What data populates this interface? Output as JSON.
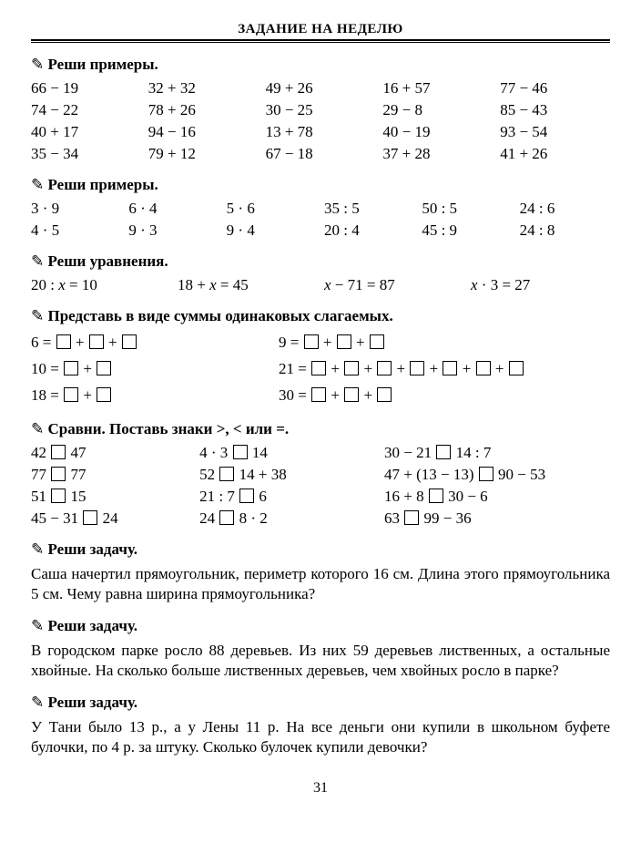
{
  "header": "ЗАДАНИЕ НА НЕДЕЛЮ",
  "task1": {
    "label": "Реши примеры.",
    "rows": [
      [
        "66 − 19",
        "32 + 32",
        "49 + 26",
        "16 + 57",
        "77 − 46"
      ],
      [
        "74 − 22",
        "78 + 26",
        "30 − 25",
        "29 − 8",
        "85 − 43"
      ],
      [
        "40 + 17",
        "94 − 16",
        "13 + 78",
        "40 − 19",
        "93 − 54"
      ],
      [
        "35 − 34",
        "79 + 12",
        "67 − 18",
        "37 + 28",
        "41 + 26"
      ]
    ]
  },
  "task2": {
    "label": "Реши примеры.",
    "rows": [
      [
        "3 · 9",
        "6 · 4",
        "5 · 6",
        "35 : 5",
        "50 : 5",
        "24 : 6"
      ],
      [
        "4 · 5",
        "9 · 3",
        "9 · 4",
        "20 : 4",
        "45 : 9",
        "24 : 8"
      ]
    ]
  },
  "task3": {
    "label": "Реши уравнения.",
    "items": [
      "20 : x = 10",
      "18 + x = 45",
      "x − 71 = 87",
      "x · 3 = 27"
    ]
  },
  "task4": {
    "label": "Представь в виде суммы одинаковых слагаемых.",
    "left": [
      {
        "lhs": "6 =",
        "boxes": 3
      },
      {
        "lhs": "10 =",
        "boxes": 2
      },
      {
        "lhs": "18 =",
        "boxes": 2
      }
    ],
    "right": [
      {
        "lhs": "9 =",
        "boxes": 3
      },
      {
        "lhs": "21 =",
        "boxes": 7
      },
      {
        "lhs": "30 =",
        "boxes": 3
      }
    ]
  },
  "task5": {
    "label": "Сравни. Поставь знаки >, < или =.",
    "rows": [
      [
        [
          "42",
          "47"
        ],
        [
          "4 · 3",
          "14"
        ],
        [
          "30 − 21",
          "14 : 7"
        ]
      ],
      [
        [
          "77",
          "77"
        ],
        [
          "52",
          "14 + 38"
        ],
        [
          "47 + (13 − 13)",
          "90 − 53"
        ]
      ],
      [
        [
          "51",
          "15"
        ],
        [
          "21 : 7",
          "6"
        ],
        [
          "16 + 8",
          "30 − 6"
        ]
      ],
      [
        [
          "45 − 31",
          "24"
        ],
        [
          "24",
          "8 · 2"
        ],
        [
          "63",
          "99 − 36"
        ]
      ]
    ]
  },
  "task6": {
    "label": "Реши задачу.",
    "text": "Саша начертил прямоугольник, периметр которого 16 см. Длина этого прямоугольника 5 см. Чему равна ширина прямоугольника?"
  },
  "task7": {
    "label": "Реши задачу.",
    "text": "В городском парке росло 88 деревьев. Из них 59 деревьев лиственных, а остальные хвойные. На сколько больше лиственных деревьев, чем хвойных росло в парке?"
  },
  "task8": {
    "label": "Реши задачу.",
    "text": "У Тани было 13 р., а у Лены 11 р. На все деньги они купили в школьном буфете булочки, по 4 р. за штуку. Сколько булочек купили девочки?"
  },
  "pagenum": "31"
}
